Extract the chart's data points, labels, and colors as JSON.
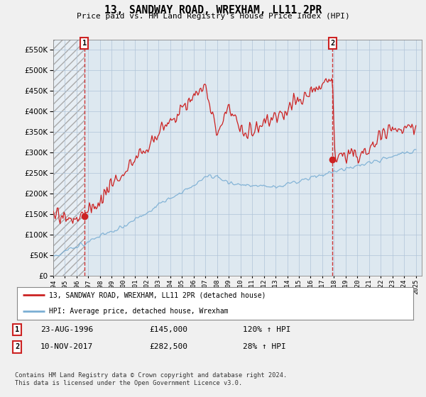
{
  "title": "13, SANDWAY ROAD, WREXHAM, LL11 2PR",
  "subtitle": "Price paid vs. HM Land Registry's House Price Index (HPI)",
  "legend_line1": "13, SANDWAY ROAD, WREXHAM, LL11 2PR (detached house)",
  "legend_line2": "HPI: Average price, detached house, Wrexham",
  "sale1_date": "23-AUG-1996",
  "sale1_price": 145000,
  "sale1_label": "120% ↑ HPI",
  "sale2_date": "10-NOV-2017",
  "sale2_price": 282500,
  "sale2_label": "28% ↑ HPI",
  "footer": "Contains HM Land Registry data © Crown copyright and database right 2024.\nThis data is licensed under the Open Government Licence v3.0.",
  "hpi_color": "#7bafd4",
  "price_color": "#cc2222",
  "background_color": "#f0f0f0",
  "plot_bg_color": "#dde8f0",
  "ylim": [
    0,
    575000
  ],
  "yticks": [
    0,
    50000,
    100000,
    150000,
    200000,
    250000,
    300000,
    350000,
    400000,
    450000,
    500000,
    550000
  ],
  "sale1_year": 1996.65,
  "sale2_year": 2017.87,
  "xmin": 1994,
  "xmax": 2025.5
}
